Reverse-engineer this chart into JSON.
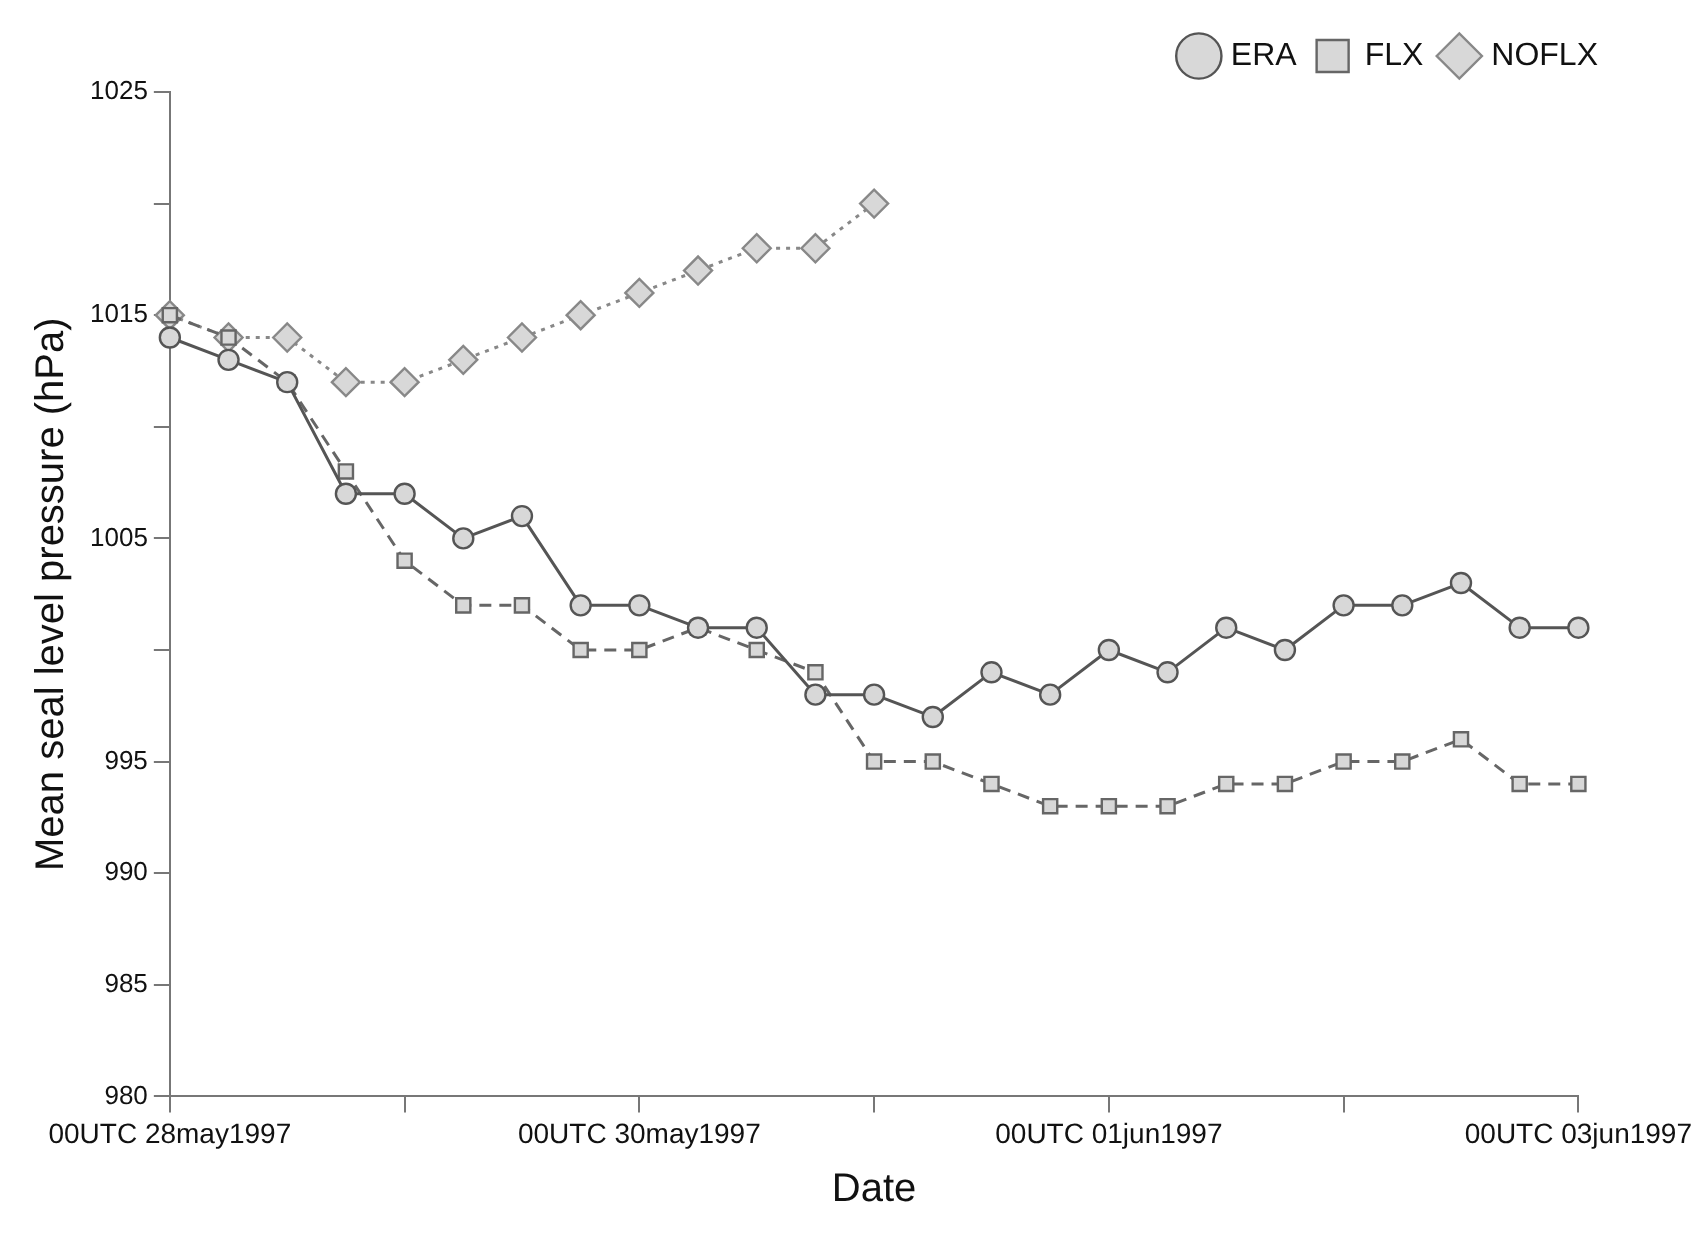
{
  "chart_data": {
    "type": "line",
    "xlabel": "Date",
    "ylabel": "Mean seal level pressure (hPa)",
    "xlim": [
      "1997-05-28T00:00",
      "1997-06-03T00:00"
    ],
    "xticks": [
      {
        "value": "1997-05-28T00:00",
        "label": "00UTC 28may1997"
      },
      {
        "value": "1997-05-29T00:00",
        "label": null
      },
      {
        "value": "1997-05-30T00:00",
        "label": "00UTC 30may1997"
      },
      {
        "value": "1997-05-31T00:00",
        "label": null
      },
      {
        "value": "1997-06-01T00:00",
        "label": "00UTC 01jun1997"
      },
      {
        "value": "1997-06-02T00:00",
        "label": null
      },
      {
        "value": "1997-06-03T00:00",
        "label": "00UTC 03jun1997"
      }
    ],
    "ylim": [
      980,
      1025
    ],
    "yticks": [
      980,
      985,
      990,
      995,
      {
        "value": 1000,
        "label": null
      },
      1005,
      {
        "value": 1010,
        "label": null
      },
      1015,
      {
        "value": 1020,
        "label": null
      },
      1025
    ],
    "grid": false,
    "legend": "top right",
    "series": [
      {
        "name": "ERA",
        "color": "#555555",
        "marker": "circle",
        "line_style": "solid",
        "x": [
          "1997-05-28T00:00",
          "1997-05-28T06:00",
          "1997-05-28T12:00",
          "1997-05-28T18:00",
          "1997-05-29T00:00",
          "1997-05-29T06:00",
          "1997-05-29T12:00",
          "1997-05-29T18:00",
          "1997-05-30T00:00",
          "1997-05-30T06:00",
          "1997-05-30T12:00",
          "1997-05-30T18:00",
          "1997-05-31T00:00",
          "1997-05-31T06:00",
          "1997-05-31T12:00",
          "1997-05-31T18:00",
          "1997-06-01T00:00",
          "1997-06-01T06:00",
          "1997-06-01T12:00",
          "1997-06-01T18:00",
          "1997-06-02T00:00",
          "1997-06-02T06:00",
          "1997-06-02T12:00",
          "1997-06-02T18:00",
          "1997-06-03T00:00"
        ],
        "values": [
          1014,
          1013,
          1012,
          1007,
          1007,
          1005,
          1006,
          1002,
          1002,
          1001,
          1001,
          998,
          998,
          997,
          999,
          998,
          1000,
          999,
          1001,
          1000,
          1002,
          1002,
          1003,
          1001,
          1001
        ]
      },
      {
        "name": "FLX",
        "color": "#666666",
        "marker": "square",
        "line_style": "dashed",
        "x": [
          "1997-05-28T00:00",
          "1997-05-28T06:00",
          "1997-05-28T12:00",
          "1997-05-28T18:00",
          "1997-05-29T00:00",
          "1997-05-29T06:00",
          "1997-05-29T12:00",
          "1997-05-29T18:00",
          "1997-05-30T00:00",
          "1997-05-30T06:00",
          "1997-05-30T12:00",
          "1997-05-30T18:00",
          "1997-05-31T00:00",
          "1997-05-31T06:00",
          "1997-05-31T12:00",
          "1997-05-31T18:00",
          "1997-06-01T00:00",
          "1997-06-01T06:00",
          "1997-06-01T12:00",
          "1997-06-01T18:00",
          "1997-06-02T00:00",
          "1997-06-02T06:00",
          "1997-06-02T12:00",
          "1997-06-02T18:00",
          "1997-06-03T00:00"
        ],
        "values": [
          1015,
          1014,
          1012,
          1008,
          1004,
          1002,
          1002,
          1000,
          1000,
          1001,
          1000,
          999,
          995,
          995,
          994,
          993,
          993,
          993,
          994,
          994,
          995,
          995,
          996,
          994,
          994
        ]
      },
      {
        "name": "NOFLX",
        "color": "#888888",
        "marker": "diamond",
        "line_style": "dotted",
        "x": [
          "1997-05-28T00:00",
          "1997-05-28T06:00",
          "1997-05-28T12:00",
          "1997-05-28T18:00",
          "1997-05-29T00:00",
          "1997-05-29T06:00",
          "1997-05-29T12:00",
          "1997-05-29T18:00",
          "1997-05-30T00:00",
          "1997-05-30T06:00",
          "1997-05-30T12:00",
          "1997-05-30T18:00",
          "1997-05-31T00:00"
        ],
        "values": [
          1015,
          1014,
          1014,
          1012,
          1012,
          1013,
          1014,
          1015,
          1016,
          1017,
          1018,
          1018,
          1020
        ]
      }
    ]
  }
}
